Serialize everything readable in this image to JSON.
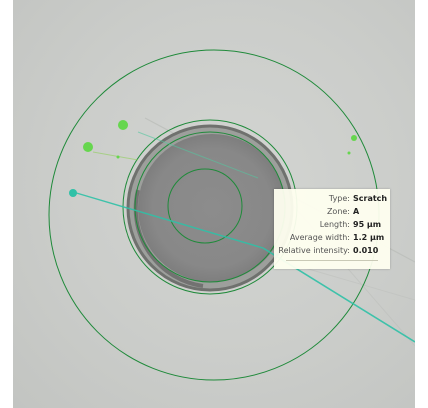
{
  "colors": {
    "zone_ring": "#1f8a3a",
    "defect_green": "#66d64e",
    "defect_cyan": "#2fc1a7",
    "panel_bg": "#fffff0"
  },
  "defect_info": {
    "type_label": "Type:",
    "type_value": "Scratch",
    "zone_label": "Zone:",
    "zone_value": "A",
    "length_label": "Length:",
    "length_value": "95 µm",
    "width_label": "Average width:",
    "width_value": "1.2 µm",
    "intensity_label": "Relative intensity:",
    "intensity_value": "0.010"
  }
}
